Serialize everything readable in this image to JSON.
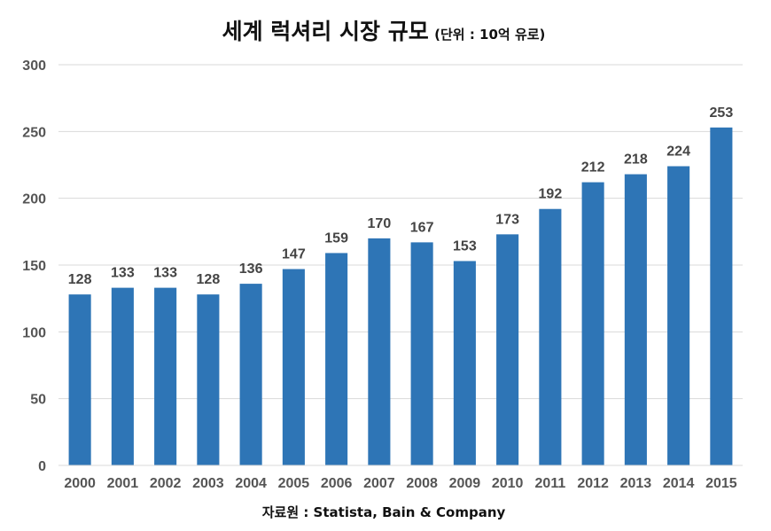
{
  "chart_data": {
    "type": "bar",
    "title": "세계 럭셔리 시장 규모",
    "subtitle": "(단위 : 10억 유로)",
    "xlabel": "",
    "ylabel": "",
    "categories": [
      "2000",
      "2001",
      "2002",
      "2003",
      "2004",
      "2005",
      "2006",
      "2007",
      "2008",
      "2009",
      "2010",
      "2011",
      "2012",
      "2013",
      "2014",
      "2015"
    ],
    "values": [
      128,
      133,
      133,
      128,
      136,
      147,
      159,
      170,
      167,
      153,
      173,
      192,
      212,
      218,
      224,
      253
    ],
    "ylim": [
      0,
      300
    ],
    "yticks": [
      0,
      50,
      100,
      150,
      200,
      250,
      300
    ],
    "grid": true,
    "legend": "none",
    "bar_color": "#2E75B6",
    "source": "자료원 : Statista, Bain & Company"
  }
}
